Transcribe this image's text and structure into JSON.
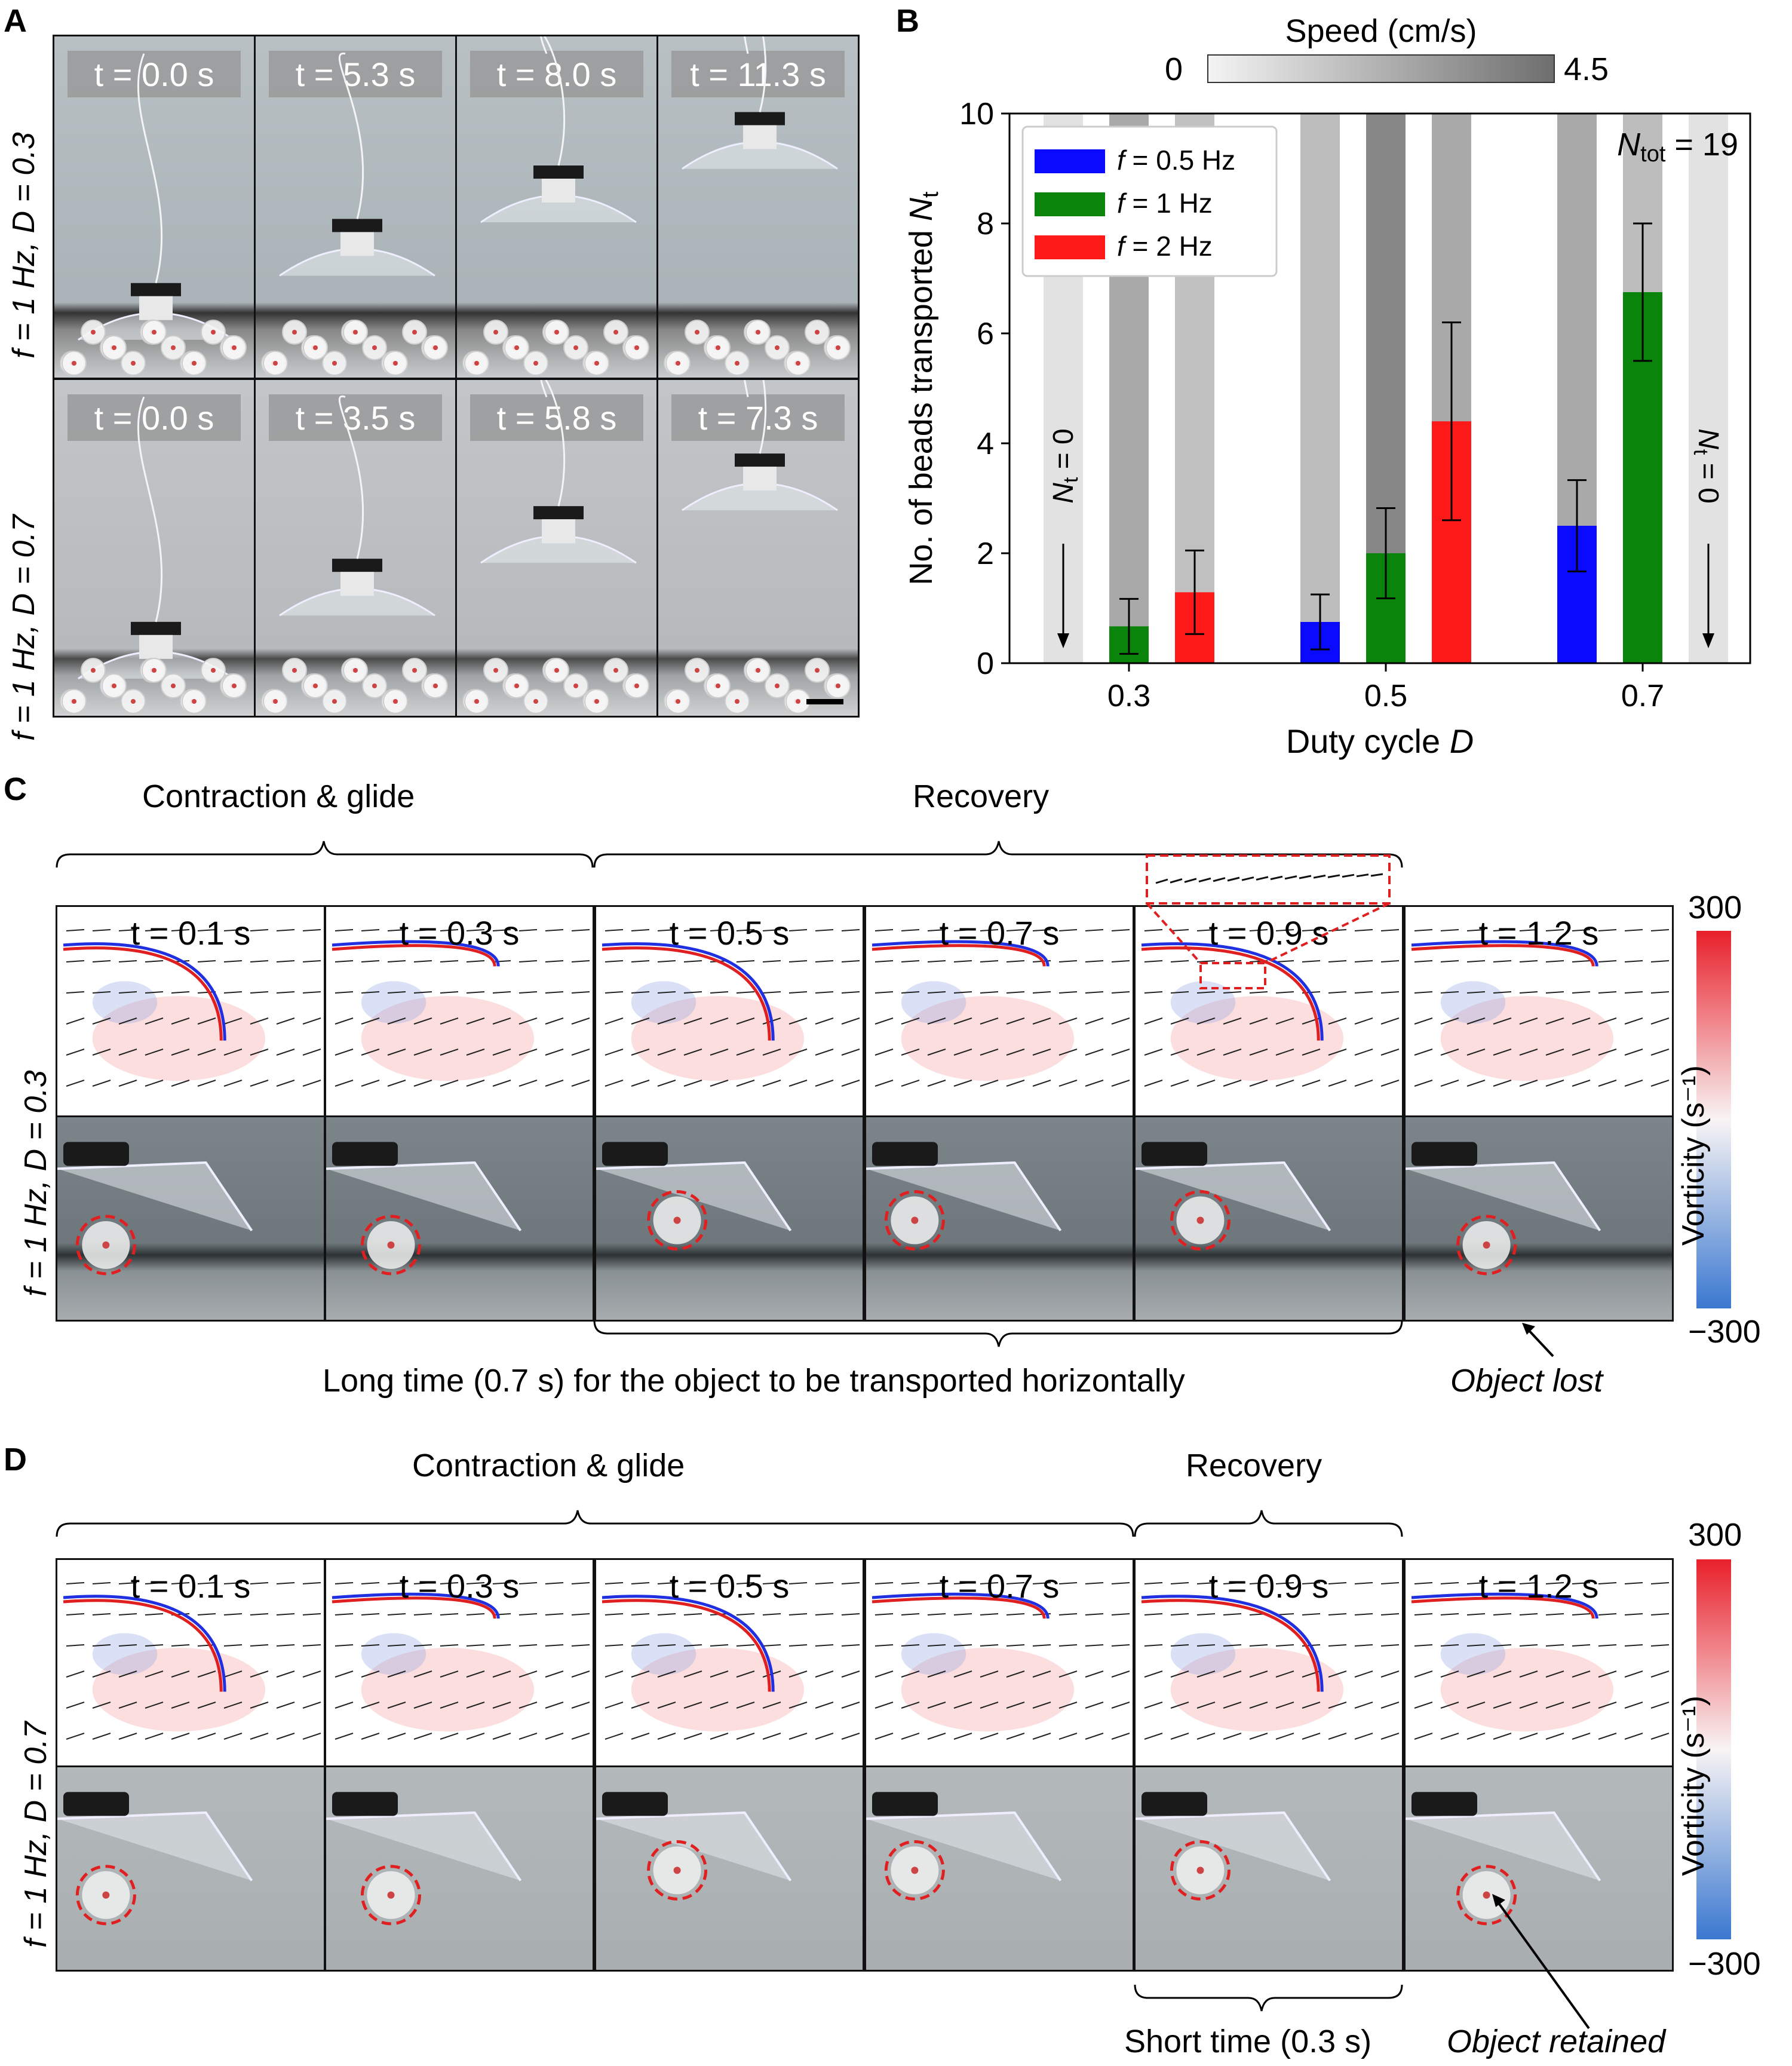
{
  "panels": {
    "A": {
      "letter": "A",
      "row_labels": [
        "f = 1 Hz, D = 0.3",
        "f = 1 Hz, D = 0.7"
      ],
      "row1_times": [
        "t = 0.0 s",
        "t = 5.3 s",
        "t = 8.0 s",
        "t = 11.3 s"
      ],
      "row2_times": [
        "t = 0.0 s",
        "t = 3.5 s",
        "t = 5.8 s",
        "t = 7.3 s"
      ]
    },
    "B": {
      "letter": "B",
      "colorbar_title": "Speed (cm/s)",
      "colorbar_min": "0",
      "colorbar_max": "4.5",
      "n_tot": "N",
      "n_tot_sub": "tot",
      "n_tot_value": " = 19",
      "nt_zero_label": "N",
      "nt_zero_sub": "t",
      "nt_zero_value": " = 0"
    },
    "C": {
      "letter": "C",
      "row_label": "f = 1 Hz, D = 0.3",
      "brace1": "Contraction & glide",
      "brace2": "Recovery",
      "times": [
        "t = 0.1 s",
        "t = 0.3 s",
        "t = 0.5 s",
        "t = 0.7 s",
        "t = 0.9 s",
        "t = 1.2 s"
      ],
      "caption_long": "Long time (0.7 s) for the object to be transported horizontally",
      "caption_lost": "Object lost",
      "colorbar_max": "300",
      "colorbar_min": "−300",
      "colorbar_title": "Vorticity (s⁻¹)"
    },
    "D": {
      "letter": "D",
      "row_label": "f = 1 Hz, D = 0.7",
      "brace1": "Contraction & glide",
      "brace2": "Recovery",
      "times": [
        "t = 0.1 s",
        "t = 0.3 s",
        "t = 0.5 s",
        "t = 0.7 s",
        "t = 0.9 s",
        "t = 1.2 s"
      ],
      "caption_short": "Short time (0.3 s)",
      "caption_retained": "Object retained",
      "colorbar_max": "300",
      "colorbar_min": "−300",
      "colorbar_title": "Vorticity (s⁻¹)"
    }
  },
  "chart_data": {
    "type": "bar",
    "title": "",
    "xlabel": "Duty cycle D",
    "ylabel": "No. of beads transported Nt",
    "ylim": [
      0,
      10
    ],
    "yticks": [
      "0",
      "2",
      "4",
      "6",
      "8",
      "10"
    ],
    "categories": [
      "0.3",
      "0.5",
      "0.7"
    ],
    "legend_position": "top-left",
    "series": [
      {
        "name": "f = 0.5 Hz",
        "color": "#0a0aff",
        "values": [
          0,
          0.75,
          2.5
        ],
        "errors": [
          0,
          0.5,
          0.83
        ],
        "speed_bg": [
          0.08,
          0.3,
          0.42
        ]
      },
      {
        "name": "f = 1 Hz",
        "color": "#0a840a",
        "values": [
          0.67,
          2.0,
          6.75
        ],
        "errors": [
          0.5,
          0.82,
          1.25
        ],
        "speed_bg": [
          0.42,
          0.62,
          0.3
        ]
      },
      {
        "name": "f = 2 Hz",
        "color": "#ff1a1a",
        "values": [
          1.29,
          4.4,
          0
        ],
        "errors": [
          0.76,
          1.8,
          0
        ],
        "speed_bg": [
          0.28,
          0.42,
          0.08
        ]
      }
    ]
  }
}
